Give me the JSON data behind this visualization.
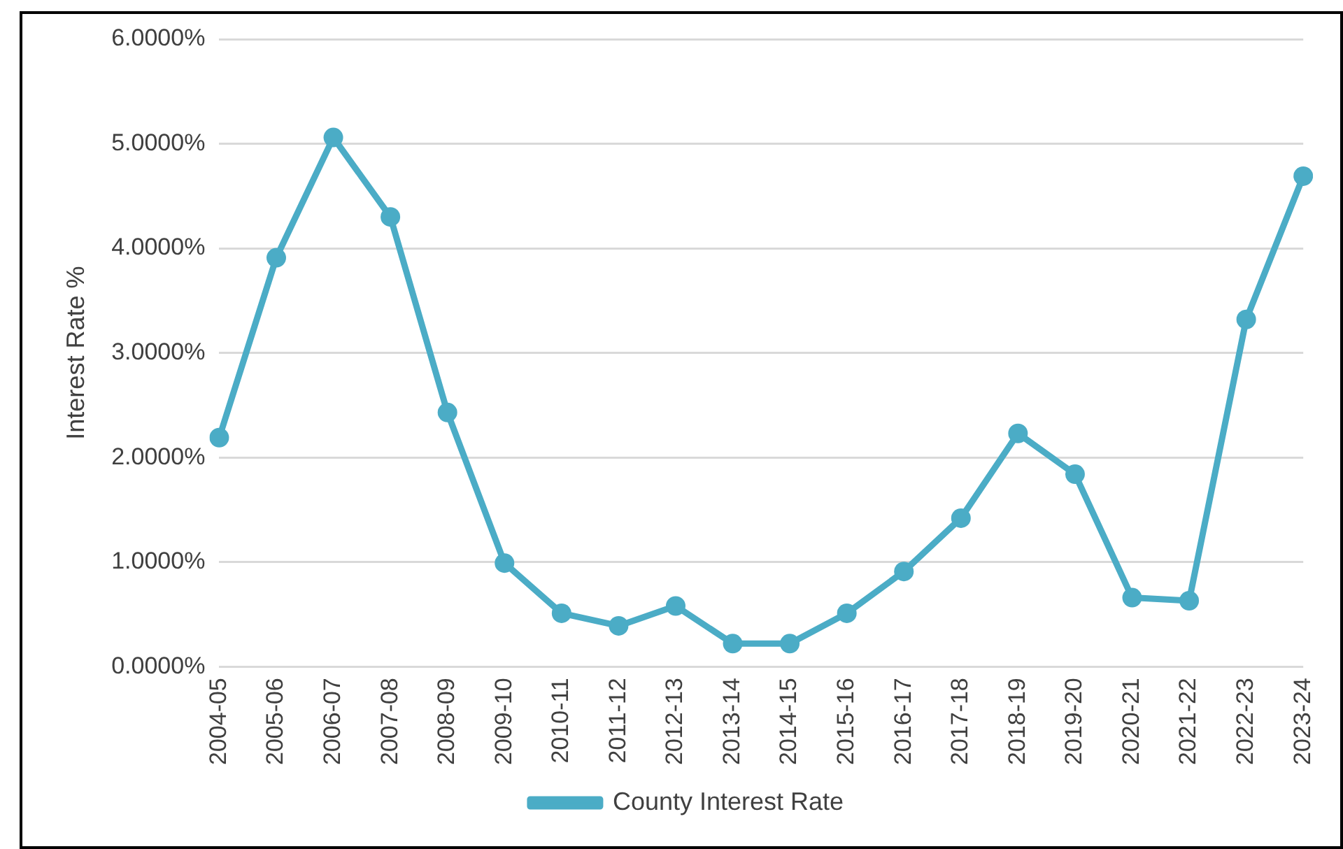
{
  "chart_data": {
    "type": "line",
    "ylabel": "Interest Rate %",
    "categories": [
      "2004-05",
      "2005-06",
      "2006-07",
      "2007-08",
      "2008-09",
      "2009-10",
      "2010-11",
      "2011-12",
      "2012-13",
      "2013-14",
      "2014-15",
      "2015-16",
      "2016-17",
      "2017-18",
      "2018-19",
      "2019-20",
      "2020-21",
      "2021-22",
      "2022-23",
      "2023-24"
    ],
    "series": [
      {
        "name": "County Interest Rate",
        "color": "#4bacc6",
        "values": [
          2.19,
          3.91,
          5.06,
          4.3,
          2.43,
          0.99,
          0.51,
          0.39,
          0.58,
          0.22,
          0.22,
          0.51,
          0.91,
          1.42,
          2.23,
          1.84,
          0.66,
          0.63,
          3.32,
          4.69
        ]
      }
    ],
    "ylim": [
      0,
      6
    ],
    "yticks": [
      {
        "value": 0,
        "label": "0.0000%"
      },
      {
        "value": 1,
        "label": "1.0000%"
      },
      {
        "value": 2,
        "label": "2.0000%"
      },
      {
        "value": 3,
        "label": "3.0000%"
      },
      {
        "value": 4,
        "label": "4.0000%"
      },
      {
        "value": 5,
        "label": "5.0000%"
      },
      {
        "value": 6,
        "label": "6.0000%"
      }
    ],
    "grid": "y",
    "legend": "bottom",
    "marker": "circle",
    "line_style": "solid"
  }
}
